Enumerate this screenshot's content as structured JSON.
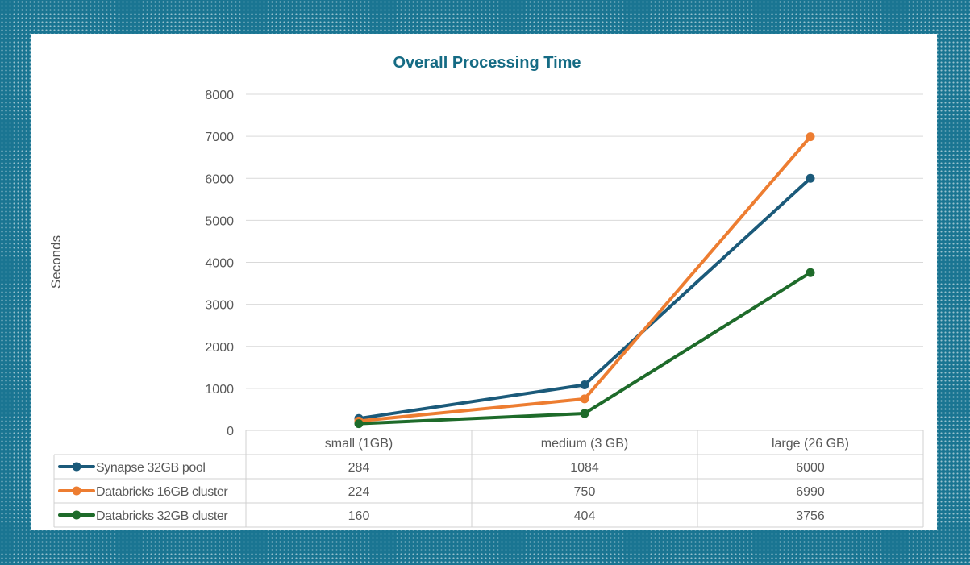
{
  "chart_data": {
    "type": "line",
    "title": "Overall Processing Time",
    "ylabel": "Seconds",
    "xlabel": "",
    "ylim": [
      0,
      8000
    ],
    "yticks": [
      0,
      1000,
      2000,
      3000,
      4000,
      5000,
      6000,
      7000,
      8000
    ],
    "grid": true,
    "legend": "data-table-below",
    "categories": [
      "small (1GB)",
      "medium (3 GB)",
      "large (26 GB)"
    ],
    "series": [
      {
        "name": "Synapse 32GB pool",
        "color": "#1b5a7a",
        "values": [
          284,
          1084,
          6000
        ]
      },
      {
        "name": "Databricks 16GB cluster",
        "color": "#ed7d31",
        "values": [
          224,
          750,
          6990
        ]
      },
      {
        "name": "Databricks 32GB cluster",
        "color": "#1e6b2a",
        "values": [
          160,
          404,
          3756
        ]
      }
    ]
  }
}
